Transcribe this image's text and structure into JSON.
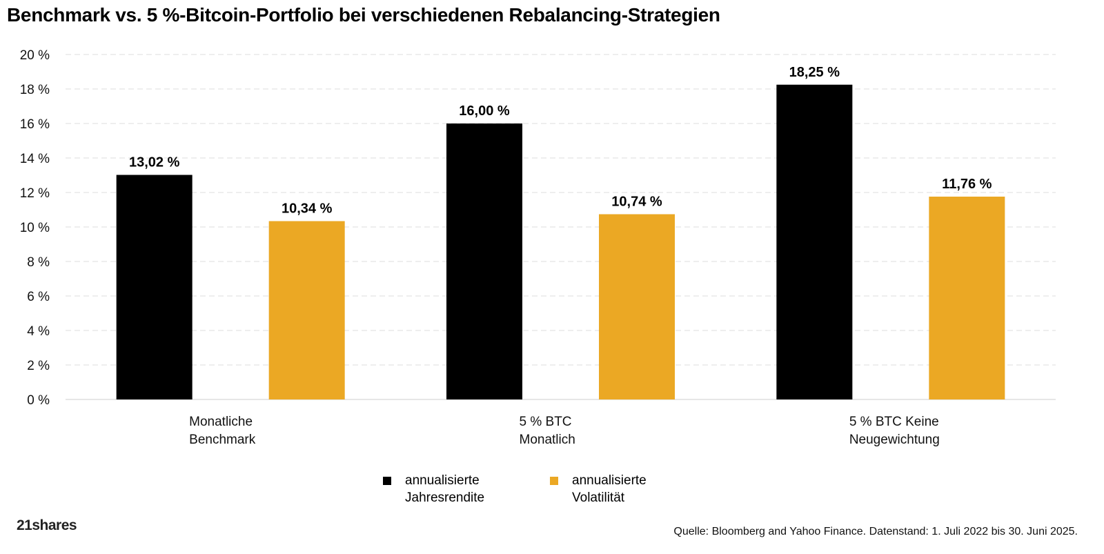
{
  "title": "Benchmark vs. 5 %-Bitcoin-Portfolio bei verschiedenen Rebalancing-Strategien",
  "chart_data": {
    "type": "bar",
    "title": "Benchmark vs. 5 %-Bitcoin-Portfolio bei verschiedenen Rebalancing-Strategien",
    "categories": [
      [
        "Monatliche",
        "Benchmark"
      ],
      [
        "5 % BTC",
        "Monatlich"
      ],
      [
        "5 % BTC Keine",
        "Neugewichtung"
      ]
    ],
    "series": [
      {
        "name": [
          "annualisierte",
          "Jahresrendite"
        ],
        "color": "#000000",
        "values": [
          13.02,
          16.0,
          18.25
        ],
        "labels": [
          "13,02 %",
          "16,00 %",
          "18,25 %"
        ]
      },
      {
        "name": [
          "annualisierte",
          "Volatilität"
        ],
        "color": "#EBA824",
        "values": [
          10.34,
          10.74,
          11.76
        ],
        "labels": [
          "10,34 %",
          "10,74 %",
          "11,76 %"
        ]
      }
    ],
    "ylim": [
      0,
      20
    ],
    "yticks": [
      0,
      2,
      4,
      6,
      8,
      10,
      12,
      14,
      16,
      18,
      20
    ],
    "ytick_labels": [
      "0 %",
      "2 %",
      "4 %",
      "6 %",
      "8 %",
      "10 %",
      "12 %",
      "14 %",
      "16 %",
      "18 %",
      "20 %"
    ],
    "grid": true,
    "legend": "bottom-center",
    "xlabel": "",
    "ylabel": ""
  },
  "logo": "21shares",
  "source": "Quelle: Bloomberg and Yahoo Finance. Datenstand: 1. Juli 2022 bis 30. Juni 2025."
}
